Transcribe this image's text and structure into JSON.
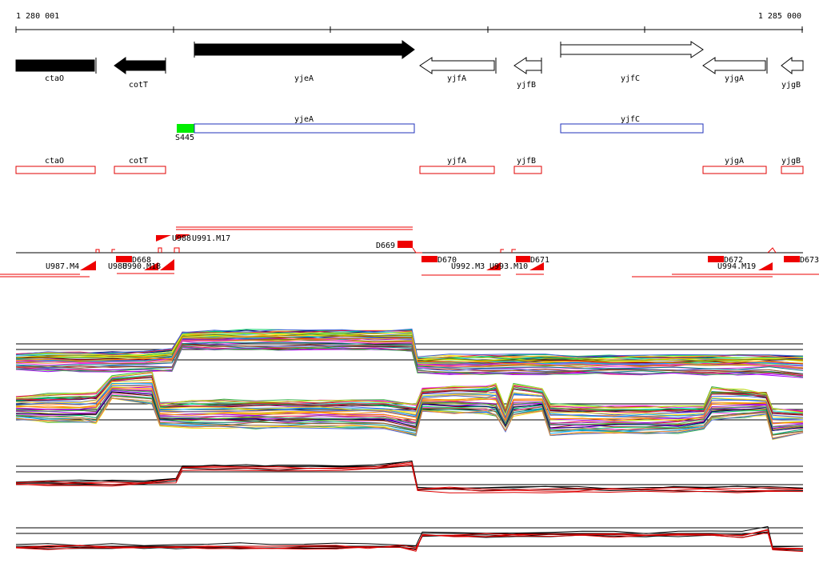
{
  "ruler": {
    "start": "1 280 001",
    "end": "1 285 000"
  },
  "gene_track": [
    "ctaO",
    "cotT",
    "yjeA",
    "yjfA",
    "yjfB",
    "yjfC",
    "yjgA",
    "yjgB"
  ],
  "feature_track": {
    "labels": [
      "yjeA",
      "yjfC"
    ],
    "marker": "S445"
  },
  "red_track": [
    "ctaO",
    "cotT",
    "yjfA",
    "yjfB",
    "yjgA",
    "yjgB"
  ],
  "segment_track": [
    "U987.M4",
    "U988",
    "U990.M18",
    "D668",
    "U988",
    "U991.M17",
    "D669",
    "D670",
    "U992.M3",
    "U993.M10",
    "D671",
    "D672",
    "U994.M19",
    "D673"
  ]
}
